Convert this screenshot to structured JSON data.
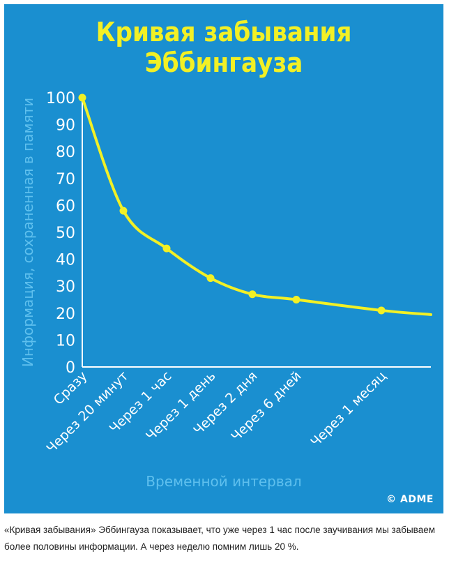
{
  "chart_data": {
    "type": "line",
    "title": [
      "Кривая забывания",
      "Эббингауза"
    ],
    "ylabel": "Информация, сохраненная в памяти",
    "xlabel": "Временной интервал",
    "ylim": [
      0,
      100
    ],
    "yticks": [
      0,
      10,
      20,
      30,
      40,
      50,
      60,
      70,
      80,
      90,
      100
    ],
    "categories": [
      "Сразу",
      "Через 20 минут",
      "Через 1 час",
      "Через 1 день",
      "Через 2 дня",
      "Через 6 дней",
      "Через 1 месяц"
    ],
    "values": [
      100,
      58,
      44,
      33,
      27,
      25,
      21
    ],
    "grid": false,
    "line_color": "#f2f025",
    "axis_color": "#ffffff"
  },
  "credit": "© ADME",
  "caption": "«Кривая забывания» Эббингауза показывает, что уже через 1 час после заучивания мы забываем более половины информации. А через неделю помним лишь 20 %.",
  "colors": {
    "background": "#1a8fd0",
    "accent": "#f2f025",
    "label": "#5fc0ee"
  }
}
